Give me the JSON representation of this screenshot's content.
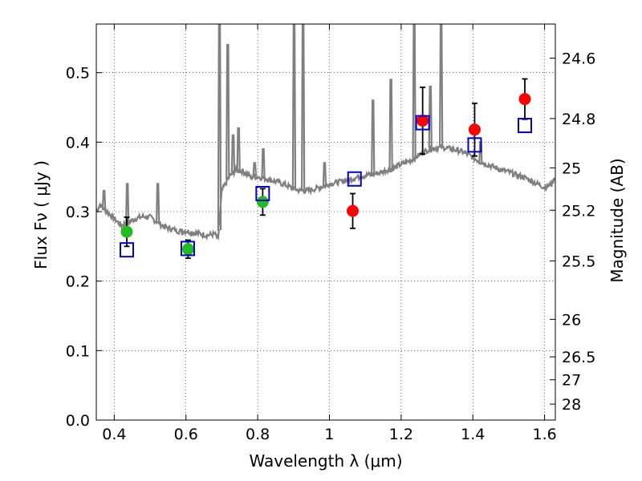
{
  "chart_data": {
    "type": "scatter",
    "xlabel": "Wavelength  λ (μm)",
    "ylabel": "Flux  Fν  ( μJy )",
    "ylabel_right": "Magnitude (AB)",
    "xlim": [
      0.35,
      1.63
    ],
    "ylim": [
      0.0,
      0.57
    ],
    "grid": true,
    "x_ticks": [
      0.4,
      0.6,
      0.8,
      1.0,
      1.2,
      1.4,
      1.6
    ],
    "x_tick_labels": [
      "0.4",
      "0.6",
      "0.8",
      "1",
      "1.2",
      "1.4",
      "1.6"
    ],
    "y_ticks": [
      0.0,
      0.1,
      0.2,
      0.3,
      0.4,
      0.5
    ],
    "y_tick_labels": [
      "0.0",
      "0.1",
      "0.2",
      "0.3",
      "0.4",
      "0.5"
    ],
    "right_ticks": [
      {
        "label": "24.6",
        "flux": 0.521
      },
      {
        "label": "24.8",
        "flux": 0.434
      },
      {
        "label": "25",
        "flux": 0.363
      },
      {
        "label": "25.2",
        "flux": 0.302
      },
      {
        "label": "25.5",
        "flux": 0.229
      },
      {
        "label": "26",
        "flux": 0.145
      },
      {
        "label": "26.5",
        "flux": 0.091
      },
      {
        "label": "27",
        "flux": 0.058
      },
      {
        "label": "28",
        "flux": 0.023
      }
    ],
    "series": [
      {
        "marker": "circle",
        "color": "#22bb22",
        "points": [
          {
            "x": 0.435,
            "y": 0.271,
            "err": 0.021
          },
          {
            "x": 0.606,
            "y": 0.246,
            "err": 0.013
          },
          {
            "x": 0.814,
            "y": 0.314,
            "err": 0.019
          }
        ]
      },
      {
        "marker": "circle",
        "color": "#ff0000",
        "points": [
          {
            "x": 1.065,
            "y": 0.301,
            "err": 0.025
          },
          {
            "x": 1.26,
            "y": 0.431,
            "err": 0.048
          },
          {
            "x": 1.405,
            "y": 0.418,
            "err": 0.038
          },
          {
            "x": 1.545,
            "y": 0.462,
            "err": 0.029
          }
        ]
      },
      {
        "marker": "open-square",
        "color": "#0000cc",
        "points": [
          {
            "x": 0.435,
            "y": 0.245
          },
          {
            "x": 0.605,
            "y": 0.247
          },
          {
            "x": 0.814,
            "y": 0.326
          },
          {
            "x": 1.07,
            "y": 0.347
          },
          {
            "x": 1.26,
            "y": 0.428
          },
          {
            "x": 1.405,
            "y": 0.396
          },
          {
            "x": 1.545,
            "y": 0.424
          }
        ]
      }
    ],
    "spectrum": {
      "color": "#808080",
      "continuum": [
        [
          0.35,
          0.3
        ],
        [
          0.36,
          0.31
        ],
        [
          0.38,
          0.3
        ],
        [
          0.4,
          0.29
        ],
        [
          0.42,
          0.28
        ],
        [
          0.44,
          0.285
        ],
        [
          0.46,
          0.29
        ],
        [
          0.48,
          0.293
        ],
        [
          0.5,
          0.292
        ],
        [
          0.52,
          0.285
        ],
        [
          0.54,
          0.278
        ],
        [
          0.56,
          0.275
        ],
        [
          0.58,
          0.272
        ],
        [
          0.6,
          0.272
        ],
        [
          0.62,
          0.27
        ],
        [
          0.64,
          0.268
        ],
        [
          0.66,
          0.266
        ],
        [
          0.68,
          0.268
        ],
        [
          0.69,
          0.26
        ],
        [
          0.7,
          0.33
        ],
        [
          0.72,
          0.35
        ],
        [
          0.74,
          0.36
        ],
        [
          0.76,
          0.358
        ],
        [
          0.78,
          0.35
        ],
        [
          0.8,
          0.35
        ],
        [
          0.82,
          0.348
        ],
        [
          0.84,
          0.345
        ],
        [
          0.86,
          0.342
        ],
        [
          0.88,
          0.338
        ],
        [
          0.9,
          0.333
        ],
        [
          0.92,
          0.33
        ],
        [
          0.94,
          0.33
        ],
        [
          0.96,
          0.333
        ],
        [
          0.98,
          0.336
        ],
        [
          1.0,
          0.34
        ],
        [
          1.02,
          0.342
        ],
        [
          1.04,
          0.344
        ],
        [
          1.06,
          0.347
        ],
        [
          1.08,
          0.35
        ],
        [
          1.1,
          0.352
        ],
        [
          1.12,
          0.354
        ],
        [
          1.14,
          0.356
        ],
        [
          1.16,
          0.36
        ],
        [
          1.18,
          0.363
        ],
        [
          1.2,
          0.368
        ],
        [
          1.22,
          0.372
        ],
        [
          1.24,
          0.378
        ],
        [
          1.26,
          0.385
        ],
        [
          1.28,
          0.39
        ],
        [
          1.3,
          0.392
        ],
        [
          1.32,
          0.392
        ],
        [
          1.34,
          0.39
        ],
        [
          1.36,
          0.388
        ],
        [
          1.38,
          0.384
        ],
        [
          1.4,
          0.378
        ],
        [
          1.42,
          0.372
        ],
        [
          1.44,
          0.368
        ],
        [
          1.46,
          0.364
        ],
        [
          1.48,
          0.36
        ],
        [
          1.5,
          0.357
        ],
        [
          1.52,
          0.353
        ],
        [
          1.54,
          0.35
        ],
        [
          1.56,
          0.345
        ],
        [
          1.58,
          0.34
        ],
        [
          1.6,
          0.335
        ],
        [
          1.62,
          0.34
        ],
        [
          1.63,
          0.35
        ]
      ],
      "lines": [
        {
          "x": 0.37,
          "y": 0.33
        },
        {
          "x": 0.405,
          "y": 0.31
        },
        {
          "x": 0.435,
          "y": 0.34
        },
        {
          "x": 0.52,
          "y": 0.34
        },
        {
          "x": 0.692,
          "y": 0.57
        },
        {
          "x": 0.715,
          "y": 0.54
        },
        {
          "x": 0.73,
          "y": 0.41
        },
        {
          "x": 0.745,
          "y": 0.42
        },
        {
          "x": 0.79,
          "y": 0.37
        },
        {
          "x": 0.814,
          "y": 0.39
        },
        {
          "x": 0.9,
          "y": 0.57
        },
        {
          "x": 0.925,
          "y": 0.57
        },
        {
          "x": 0.985,
          "y": 0.37
        },
        {
          "x": 1.12,
          "y": 0.46
        },
        {
          "x": 1.17,
          "y": 0.49
        },
        {
          "x": 1.235,
          "y": 0.57
        },
        {
          "x": 1.28,
          "y": 0.48
        },
        {
          "x": 1.31,
          "y": 0.57
        },
        {
          "x": 1.42,
          "y": 0.4
        }
      ]
    }
  }
}
